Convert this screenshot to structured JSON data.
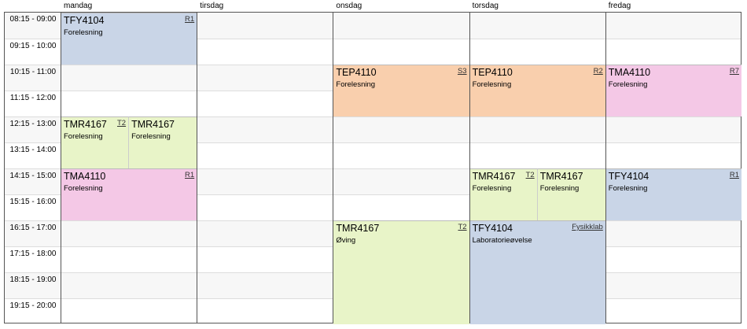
{
  "days": [
    "mandag",
    "tirsdag",
    "onsdag",
    "torsdag",
    "fredag"
  ],
  "times": [
    "08:15 - 09:00",
    "09:15 - 10:00",
    "10:15 - 11:00",
    "11:15 - 12:00",
    "12:15 - 13:00",
    "13:15 - 14:00",
    "14:15 - 15:00",
    "15:15 - 16:00",
    "16:15 - 17:00",
    "17:15 - 18:00",
    "18:15 - 19:00",
    "19:15 - 20:00"
  ],
  "colors": {
    "TFY4104": "#c9d5e7",
    "TEP4110": "#f9cfad",
    "TMA4110": "#f4c8e6",
    "TMR4167": "#e8f4c8"
  },
  "events": [
    {
      "day": 0,
      "start": "08:15",
      "hours": 2,
      "code": "TFY4104",
      "type": "Forelesning",
      "room": "R1"
    },
    {
      "day": 0,
      "start": "12:15",
      "hours": 2,
      "code": "TMR4167",
      "type": "Forelesning",
      "room": "T2",
      "overlap": 0
    },
    {
      "day": 0,
      "start": "12:15",
      "hours": 2,
      "code": "TMR4167",
      "type": "Forelesning",
      "room": "",
      "overlap": 1
    },
    {
      "day": 0,
      "start": "14:15",
      "hours": 2,
      "code": "TMA4110",
      "type": "Forelesning",
      "room": "R1"
    },
    {
      "day": 2,
      "start": "10:15",
      "hours": 2,
      "code": "TEP4110",
      "type": "Forelesning",
      "room": "S3"
    },
    {
      "day": 2,
      "start": "16:15",
      "hours": 4,
      "code": "TMR4167",
      "type": "Øving",
      "room": "T2"
    },
    {
      "day": 3,
      "start": "10:15",
      "hours": 2,
      "code": "TEP4110",
      "type": "Forelesning",
      "room": "R2"
    },
    {
      "day": 3,
      "start": "14:15",
      "hours": 2,
      "code": "TMR4167",
      "type": "Forelesning",
      "room": "T2",
      "overlap": 0
    },
    {
      "day": 3,
      "start": "14:15",
      "hours": 2,
      "code": "TMR4167",
      "type": "Forelesning",
      "room": "",
      "overlap": 1
    },
    {
      "day": 3,
      "start": "16:15",
      "hours": 4,
      "code": "TFY4104",
      "type": "Laboratorieøvelse",
      "room": "Fysikklab"
    },
    {
      "day": 4,
      "start": "10:15",
      "hours": 2,
      "code": "TMA4110",
      "type": "Forelesning",
      "room": "R7"
    },
    {
      "day": 4,
      "start": "14:15",
      "hours": 2,
      "code": "TFY4104",
      "type": "Forelesning",
      "room": "R1"
    }
  ]
}
